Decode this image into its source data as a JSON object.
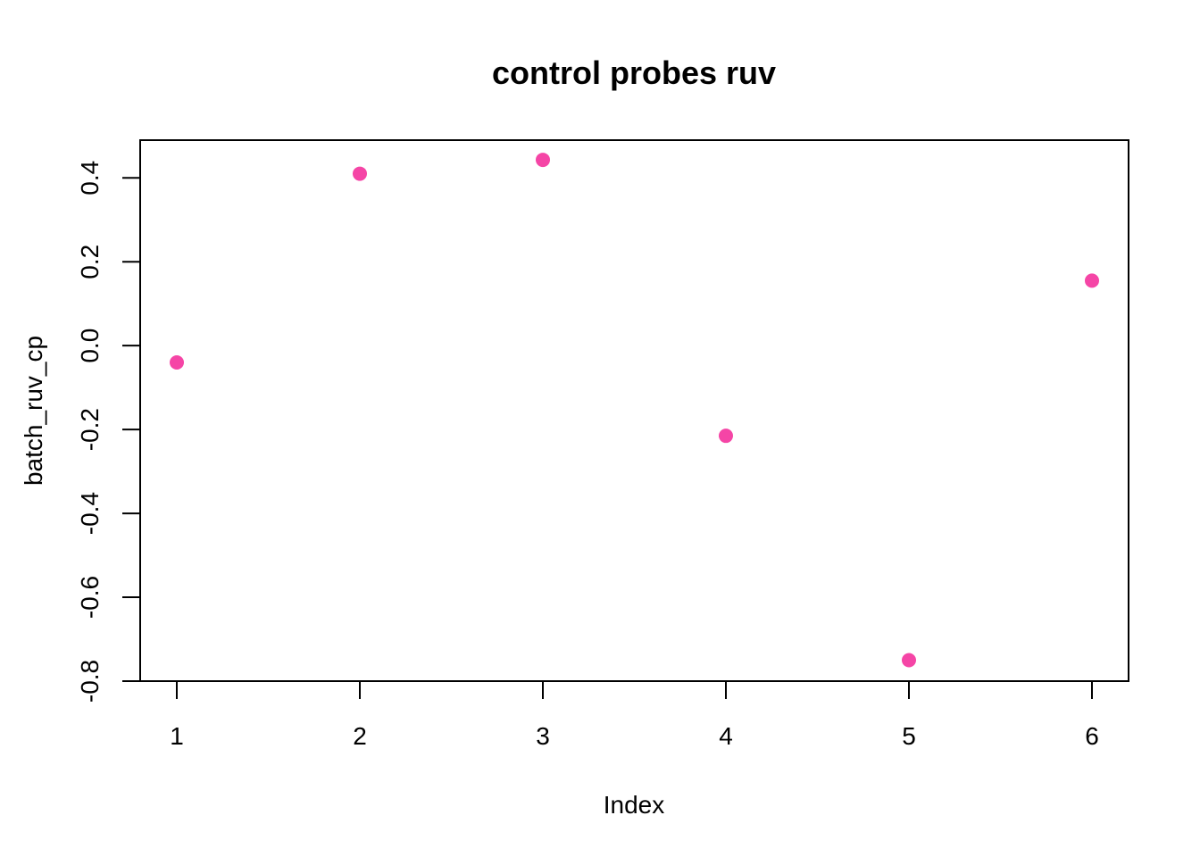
{
  "chart_data": {
    "type": "scatter",
    "title": "control probes ruv",
    "xlabel": "Index",
    "ylabel": "batch_ruv_cp",
    "x": [
      1,
      2,
      3,
      4,
      5,
      6
    ],
    "y": [
      -0.04,
      0.41,
      0.443,
      -0.215,
      -0.75,
      0.155
    ],
    "xlim": [
      0.8,
      6.2
    ],
    "ylim": [
      -0.8,
      0.49
    ],
    "x_ticks": [
      1,
      2,
      3,
      4,
      5,
      6
    ],
    "x_tick_labels": [
      "1",
      "2",
      "3",
      "4",
      "5",
      "6"
    ],
    "y_ticks": [
      -0.8,
      -0.6,
      -0.4,
      -0.2,
      0.0,
      0.2,
      0.4
    ],
    "y_tick_labels": [
      "-0.8",
      "-0.6",
      "-0.4",
      "-0.2",
      "0.0",
      "0.2",
      "0.4"
    ],
    "point_color": "#F545A6",
    "grid": false,
    "legend": "none"
  }
}
